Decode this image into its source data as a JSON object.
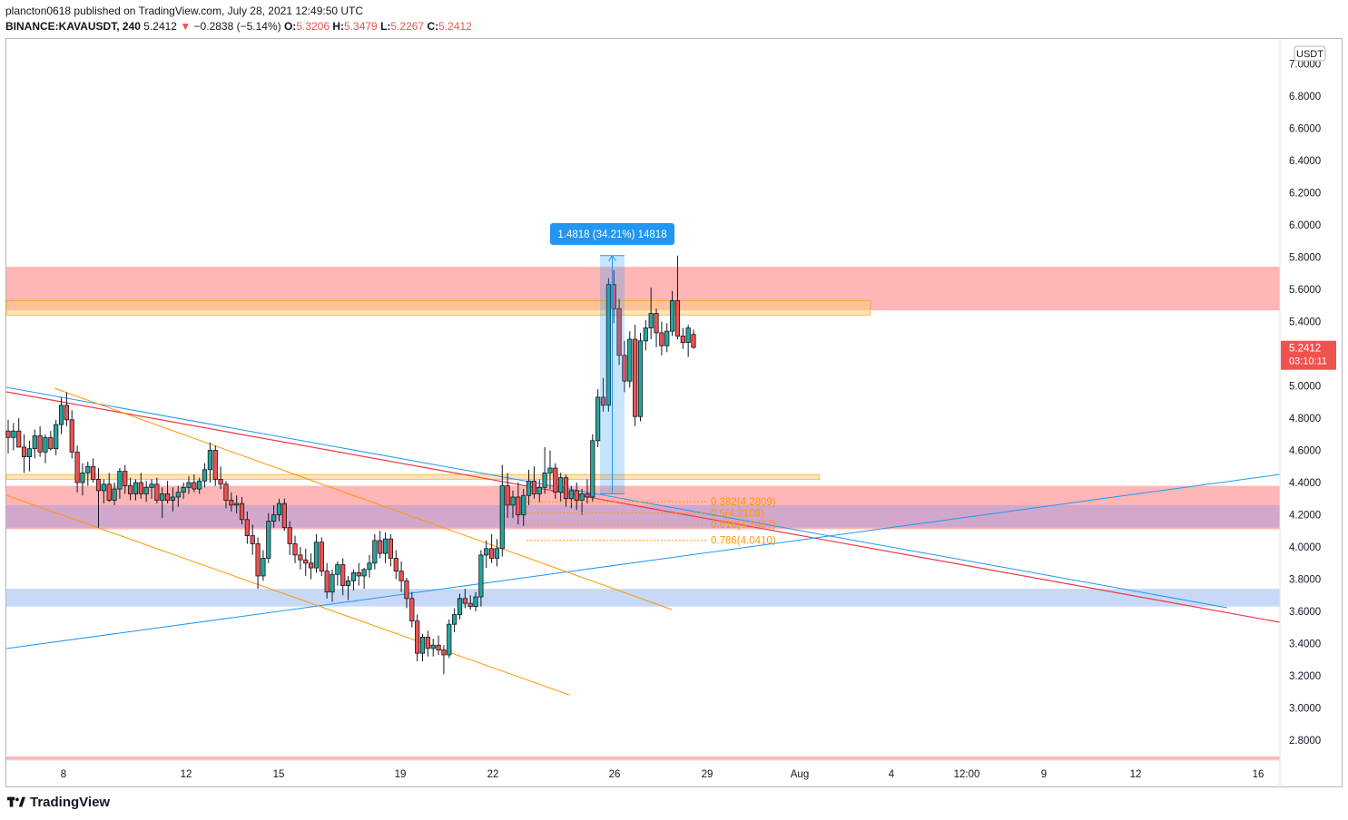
{
  "header": {
    "line1": "plancton0618 published on TradingView.com, July 28, 2021 12:49:50 UTC",
    "symbol": "BINANCE:KAVAUSDT, 240",
    "price": "5.2412",
    "arrow": "▼",
    "change": "−0.2838 (−5.14%)",
    "o_label": "O:",
    "o_val": "5.3206",
    "h_label": "H:",
    "h_val": "5.3479",
    "l_label": "L:",
    "l_val": "5.2267",
    "c_label": "C:",
    "c_val": "5.2412"
  },
  "footer": {
    "brand": "TradingView"
  },
  "chart_data": {
    "type": "candlestick",
    "currency_label": "USDT",
    "y_ticks": [
      "7.0000",
      "6.8000",
      "6.6000",
      "6.4000",
      "6.2000",
      "6.0000",
      "5.8000",
      "5.6000",
      "5.4000",
      "5.0000",
      "4.8000",
      "4.6000",
      "4.4000",
      "4.2000",
      "4.0000",
      "3.8000",
      "3.6000",
      "3.4000",
      "3.2000",
      "3.0000",
      "2.8000"
    ],
    "x_ticks": [
      "8",
      "12",
      "15",
      "19",
      "22",
      "26",
      "29",
      "Aug",
      "4",
      "12:00",
      "9",
      "12",
      "16"
    ],
    "ylim": [
      2.7,
      7.1
    ],
    "last_price": {
      "price": "5.2412",
      "countdown": "03:10:11",
      "value": 5.2412,
      "color": "#ef5350"
    },
    "measure_label": "1.4818 (34.21%) 14818",
    "measure": {
      "low": 4.33,
      "high": 5.81
    },
    "fib_levels": [
      {
        "label": "0.382(4.2809)",
        "value": 4.2809
      },
      {
        "label": "0.5(4.2108)",
        "value": 4.2108
      },
      {
        "label": "0.618(4.1407)",
        "value": 4.1407
      },
      {
        "label": "0.786(4.0410)",
        "value": 4.041
      }
    ],
    "zones": [
      {
        "name": "upper-resistance",
        "from": 5.47,
        "to": 5.74,
        "color": "#ff9a9a"
      },
      {
        "name": "upper-orange",
        "from": 5.44,
        "to": 5.53,
        "color": "#ffcc80"
      },
      {
        "name": "mid-orange",
        "from": 4.42,
        "to": 4.45,
        "color": "#ffcc80"
      },
      {
        "name": "mid-support",
        "from": 4.11,
        "to": 4.38,
        "color": "#ff9a9a"
      },
      {
        "name": "mid-dark",
        "from": 4.12,
        "to": 4.26,
        "color": "#b39ddb"
      },
      {
        "name": "low-support",
        "from": 3.63,
        "to": 3.74,
        "color": "#90b4f0"
      }
    ],
    "candles": [
      [
        4.72,
        4.79,
        4.58,
        4.68
      ],
      [
        4.68,
        4.77,
        4.6,
        4.72
      ],
      [
        4.72,
        4.8,
        4.63,
        4.62
      ],
      [
        4.62,
        4.7,
        4.46,
        4.56
      ],
      [
        4.56,
        4.66,
        4.47,
        4.61
      ],
      [
        4.61,
        4.73,
        4.55,
        4.69
      ],
      [
        4.69,
        4.75,
        4.56,
        4.59
      ],
      [
        4.59,
        4.7,
        4.52,
        4.68
      ],
      [
        4.68,
        4.72,
        4.6,
        4.61
      ],
      [
        4.61,
        4.79,
        4.57,
        4.76
      ],
      [
        4.76,
        4.93,
        4.7,
        4.88
      ],
      [
        4.88,
        4.96,
        4.75,
        4.79
      ],
      [
        4.79,
        4.85,
        4.55,
        4.59
      ],
      [
        4.59,
        4.63,
        4.34,
        4.4
      ],
      [
        4.4,
        4.52,
        4.32,
        4.46
      ],
      [
        4.46,
        4.53,
        4.38,
        4.5
      ],
      [
        4.5,
        4.55,
        4.4,
        4.42
      ],
      [
        4.42,
        4.49,
        4.12,
        4.35
      ],
      [
        4.35,
        4.42,
        4.27,
        4.39
      ],
      [
        4.39,
        4.46,
        4.28,
        4.29
      ],
      [
        4.29,
        4.4,
        4.26,
        4.36
      ],
      [
        4.36,
        4.49,
        4.3,
        4.47
      ],
      [
        4.47,
        4.51,
        4.33,
        4.38
      ],
      [
        4.38,
        4.43,
        4.29,
        4.33
      ],
      [
        4.33,
        4.42,
        4.29,
        4.4
      ],
      [
        4.4,
        4.46,
        4.3,
        4.33
      ],
      [
        4.33,
        4.41,
        4.28,
        4.37
      ],
      [
        4.37,
        4.42,
        4.3,
        4.39
      ],
      [
        4.39,
        4.43,
        4.27,
        4.29
      ],
      [
        4.29,
        4.37,
        4.18,
        4.33
      ],
      [
        4.33,
        4.41,
        4.27,
        4.29
      ],
      [
        4.29,
        4.37,
        4.22,
        4.31
      ],
      [
        4.31,
        4.38,
        4.25,
        4.34
      ],
      [
        4.34,
        4.4,
        4.3,
        4.37
      ],
      [
        4.37,
        4.44,
        4.33,
        4.4
      ],
      [
        4.4,
        4.45,
        4.34,
        4.36
      ],
      [
        4.36,
        4.43,
        4.33,
        4.41
      ],
      [
        4.41,
        4.52,
        4.37,
        4.48
      ],
      [
        4.48,
        4.65,
        4.4,
        4.6
      ],
      [
        4.6,
        4.63,
        4.38,
        4.42
      ],
      [
        4.42,
        4.5,
        4.36,
        4.39
      ],
      [
        4.39,
        4.41,
        4.24,
        4.29
      ],
      [
        4.29,
        4.34,
        4.22,
        4.26
      ],
      [
        4.26,
        4.32,
        4.21,
        4.27
      ],
      [
        4.27,
        4.31,
        4.14,
        4.17
      ],
      [
        4.17,
        4.22,
        4.02,
        4.07
      ],
      [
        4.07,
        4.14,
        3.95,
        4.02
      ],
      [
        4.02,
        4.06,
        3.74,
        3.82
      ],
      [
        3.82,
        3.98,
        3.79,
        3.93
      ],
      [
        3.93,
        4.21,
        3.9,
        4.16
      ],
      [
        4.16,
        4.26,
        4.12,
        4.2
      ],
      [
        4.2,
        4.3,
        4.16,
        4.27
      ],
      [
        4.27,
        4.3,
        4.1,
        4.12
      ],
      [
        4.12,
        4.16,
        3.95,
        4.02
      ],
      [
        4.02,
        4.07,
        3.9,
        3.95
      ],
      [
        3.95,
        4.0,
        3.86,
        3.92
      ],
      [
        3.92,
        3.99,
        3.82,
        3.9
      ],
      [
        3.9,
        3.96,
        3.8,
        3.87
      ],
      [
        3.87,
        4.08,
        3.84,
        4.03
      ],
      [
        4.03,
        4.06,
        3.82,
        3.85
      ],
      [
        3.85,
        3.9,
        3.68,
        3.72
      ],
      [
        3.72,
        3.86,
        3.66,
        3.83
      ],
      [
        3.83,
        3.91,
        3.76,
        3.89
      ],
      [
        3.89,
        3.93,
        3.7,
        3.76
      ],
      [
        3.76,
        3.82,
        3.67,
        3.79
      ],
      [
        3.79,
        3.86,
        3.73,
        3.84
      ],
      [
        3.84,
        3.9,
        3.76,
        3.82
      ],
      [
        3.82,
        3.87,
        3.74,
        3.86
      ],
      [
        3.86,
        3.95,
        3.81,
        3.9
      ],
      [
        3.9,
        4.08,
        3.86,
        4.04
      ],
      [
        4.04,
        4.1,
        3.93,
        3.96
      ],
      [
        3.96,
        4.09,
        3.9,
        4.05
      ],
      [
        4.05,
        4.08,
        3.88,
        3.93
      ],
      [
        3.93,
        3.98,
        3.8,
        3.85
      ],
      [
        3.85,
        3.91,
        3.72,
        3.79
      ],
      [
        3.79,
        3.81,
        3.62,
        3.68
      ],
      [
        3.68,
        3.72,
        3.5,
        3.54
      ],
      [
        3.54,
        3.58,
        3.29,
        3.34
      ],
      [
        3.34,
        3.46,
        3.29,
        3.44
      ],
      [
        3.44,
        3.48,
        3.32,
        3.37
      ],
      [
        3.37,
        3.43,
        3.32,
        3.39
      ],
      [
        3.39,
        3.45,
        3.33,
        3.36
      ],
      [
        3.36,
        3.39,
        3.21,
        3.33
      ],
      [
        3.33,
        3.55,
        3.31,
        3.52
      ],
      [
        3.52,
        3.62,
        3.47,
        3.58
      ],
      [
        3.58,
        3.71,
        3.55,
        3.68
      ],
      [
        3.68,
        3.74,
        3.62,
        3.65
      ],
      [
        3.65,
        3.7,
        3.61,
        3.63
      ],
      [
        3.63,
        3.72,
        3.6,
        3.69
      ],
      [
        3.69,
        3.98,
        3.63,
        3.95
      ],
      [
        3.95,
        4.04,
        3.87,
        3.99
      ],
      [
        3.99,
        4.08,
        3.9,
        3.93
      ],
      [
        3.93,
        4.05,
        3.88,
        3.99
      ],
      [
        3.99,
        4.51,
        3.94,
        4.38
      ],
      [
        4.38,
        4.46,
        4.18,
        4.26
      ],
      [
        4.26,
        4.35,
        4.18,
        4.31
      ],
      [
        4.31,
        4.4,
        4.14,
        4.2
      ],
      [
        4.2,
        4.36,
        4.13,
        4.32
      ],
      [
        4.32,
        4.48,
        4.26,
        4.41
      ],
      [
        4.41,
        4.5,
        4.3,
        4.33
      ],
      [
        4.33,
        4.42,
        4.28,
        4.37
      ],
      [
        4.37,
        4.62,
        4.33,
        4.46
      ],
      [
        4.46,
        4.6,
        4.36,
        4.49
      ],
      [
        4.49,
        4.52,
        4.3,
        4.34
      ],
      [
        4.34,
        4.46,
        4.28,
        4.43
      ],
      [
        4.43,
        4.45,
        4.25,
        4.3
      ],
      [
        4.3,
        4.38,
        4.24,
        4.35
      ],
      [
        4.35,
        4.4,
        4.23,
        4.29
      ],
      [
        4.29,
        4.36,
        4.2,
        4.33
      ],
      [
        4.33,
        4.42,
        4.27,
        4.31
      ],
      [
        4.31,
        4.7,
        4.28,
        4.66
      ],
      [
        4.66,
        4.98,
        4.62,
        4.93
      ],
      [
        4.93,
        5.05,
        4.84,
        4.88
      ],
      [
        4.88,
        5.67,
        4.84,
        5.63
      ],
      [
        5.63,
        5.72,
        5.39,
        5.48
      ],
      [
        5.48,
        5.54,
        5.13,
        5.19
      ],
      [
        5.19,
        5.28,
        4.96,
        5.03
      ],
      [
        5.03,
        5.34,
        4.99,
        5.29
      ],
      [
        5.29,
        5.38,
        4.75,
        4.81
      ],
      [
        4.81,
        5.33,
        4.78,
        5.28
      ],
      [
        5.28,
        5.41,
        5.22,
        5.36
      ],
      [
        5.36,
        5.61,
        5.29,
        5.45
      ],
      [
        5.45,
        5.48,
        5.24,
        5.33
      ],
      [
        5.33,
        5.4,
        5.19,
        5.25
      ],
      [
        5.25,
        5.39,
        5.21,
        5.34
      ],
      [
        5.34,
        5.59,
        5.31,
        5.53
      ],
      [
        5.53,
        5.81,
        5.29,
        5.31
      ],
      [
        5.31,
        5.36,
        5.23,
        5.27
      ],
      [
        5.27,
        5.38,
        5.18,
        5.36
      ],
      [
        5.32,
        5.35,
        5.23,
        5.24
      ]
    ]
  }
}
